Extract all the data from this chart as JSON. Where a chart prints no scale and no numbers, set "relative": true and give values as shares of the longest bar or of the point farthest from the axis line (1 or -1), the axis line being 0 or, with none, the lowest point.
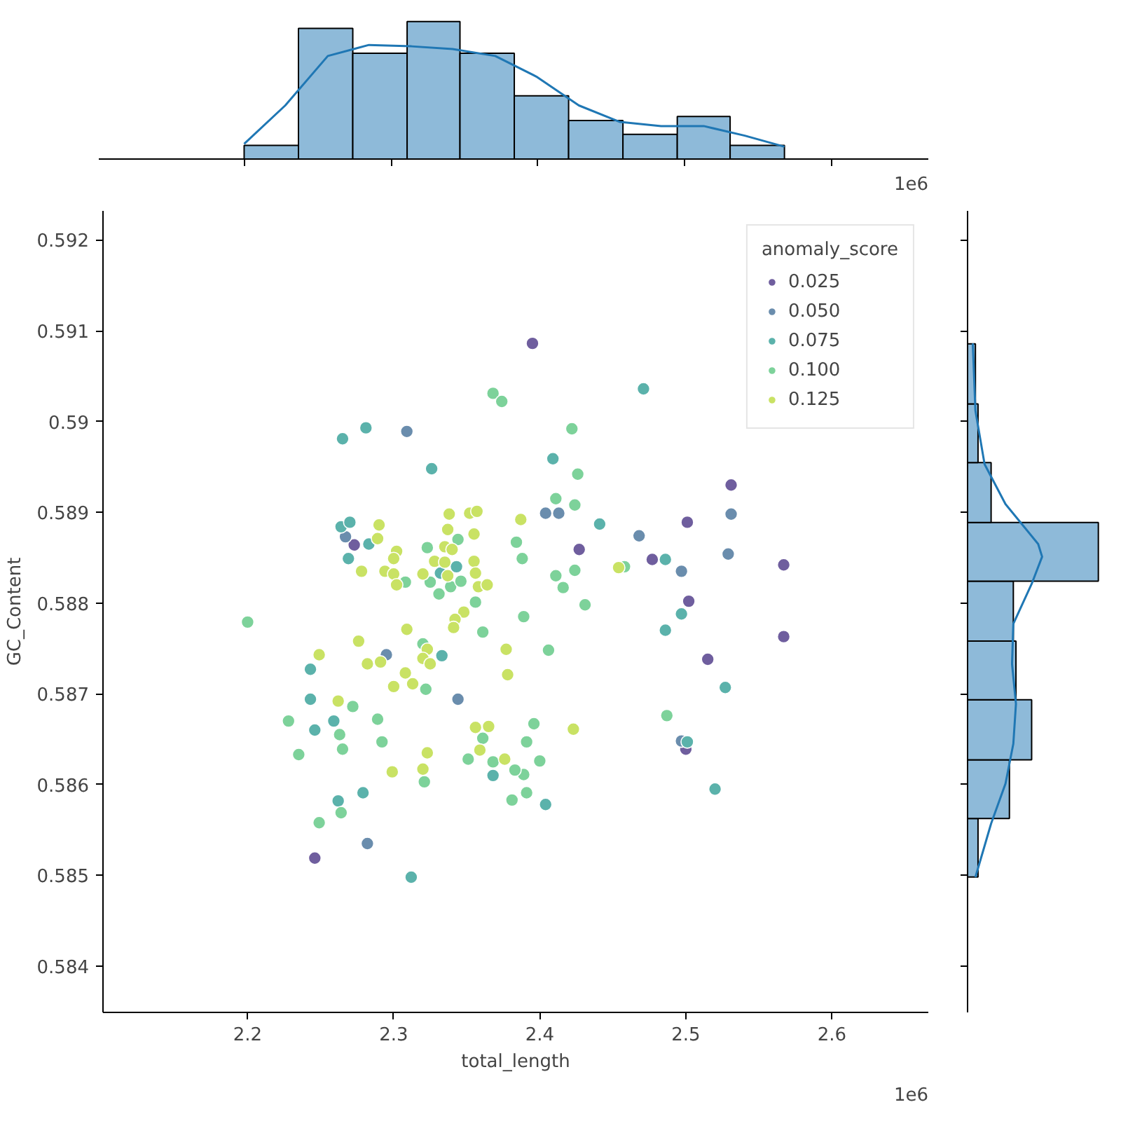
{
  "chart_data": [
    {
      "type": "histogram",
      "relative": true,
      "color": "#8ebad9",
      "bins": [
        2.2,
        2.237,
        2.274,
        2.311,
        2.347,
        2.384,
        2.421,
        2.458,
        2.495,
        2.531,
        2.568
      ],
      "values": [
        0.1,
        0.95,
        0.77,
        1.0,
        0.77,
        0.46,
        0.28,
        0.18,
        0.31,
        0.1
      ],
      "xlim": [
        2.101,
        2.666
      ],
      "xticks": [
        2.2,
        2.3,
        2.4,
        2.5,
        2.6
      ],
      "tick_labels": false,
      "annotations": [
        "1e6"
      ],
      "series": [
        {
          "type": "line",
          "color": "#1f77b4",
          "x": [
            2.2,
            2.228,
            2.257,
            2.285,
            2.314,
            2.342,
            2.371,
            2.399,
            2.428,
            2.456,
            2.484,
            2.513,
            2.541,
            2.568
          ],
          "values": [
            0.11,
            0.39,
            0.75,
            0.83,
            0.82,
            0.8,
            0.75,
            0.6,
            0.39,
            0.27,
            0.24,
            0.24,
            0.17,
            0.09
          ]
        }
      ]
    },
    {
      "type": "scatter",
      "xlabel": "total_length",
      "ylabel": "GC_Content",
      "xlim": [
        2.101,
        2.666
      ],
      "ylim": [
        0.58349,
        0.59232
      ],
      "xticks": [
        2.2,
        2.3,
        2.4,
        2.5,
        2.6
      ],
      "yticks": [
        0.584,
        0.585,
        0.586,
        0.587,
        0.588,
        0.589,
        0.59,
        0.591,
        0.592
      ],
      "legend": "top right",
      "legend_title": "anomaly_score",
      "marker": "circle",
      "grid": false,
      "annotations": [
        "1e6"
      ],
      "series": [
        {
          "type": "scatter",
          "name": "0.025",
          "color": "#6f5e9e",
          "x": [
            2.395,
            2.531,
            2.501,
            2.273,
            2.427,
            2.477,
            2.567,
            2.502,
            2.567,
            2.515,
            2.5,
            2.246
          ],
          "values": [
            0.59086,
            0.5893,
            0.58889,
            0.58864,
            0.58859,
            0.58848,
            0.58842,
            0.58802,
            0.58763,
            0.58738,
            0.58639,
            0.58519
          ]
        },
        {
          "type": "scatter",
          "name": "0.050",
          "color": "#6a8dad",
          "x": [
            2.309,
            2.267,
            2.404,
            2.413,
            2.531,
            2.529,
            2.468,
            2.497,
            2.497,
            2.295,
            2.344,
            2.282
          ],
          "values": [
            0.58989,
            0.58873,
            0.58899,
            0.58899,
            0.58898,
            0.58854,
            0.58874,
            0.58835,
            0.58648,
            0.58743,
            0.58694,
            0.58535
          ]
        },
        {
          "type": "scatter",
          "name": "0.075",
          "color": "#5bb2ab",
          "x": [
            2.265,
            2.281,
            2.326,
            2.471,
            2.409,
            2.441,
            2.486,
            2.264,
            2.27,
            2.283,
            2.269,
            2.343,
            2.332,
            2.243,
            2.243,
            2.246,
            2.259,
            2.262,
            2.279,
            2.333,
            2.312,
            2.497,
            2.486,
            2.527,
            2.501,
            2.52,
            2.404,
            2.368
          ],
          "values": [
            0.58981,
            0.58993,
            0.58948,
            0.59036,
            0.58959,
            0.58887,
            0.58848,
            0.58884,
            0.58889,
            0.58865,
            0.58849,
            0.5884,
            0.58833,
            0.58727,
            0.58694,
            0.5866,
            0.5867,
            0.58582,
            0.58591,
            0.58742,
            0.58498,
            0.58788,
            0.5877,
            0.58707,
            0.58647,
            0.58595,
            0.58578,
            0.5861
          ]
        },
        {
          "type": "scatter",
          "name": "0.100",
          "color": "#7dd29a",
          "x": [
            2.368,
            2.374,
            2.422,
            2.426,
            2.411,
            2.424,
            2.384,
            2.388,
            2.411,
            2.424,
            2.416,
            2.431,
            2.458,
            2.323,
            2.344,
            2.308,
            2.325,
            2.339,
            2.346,
            2.331,
            2.356,
            2.361,
            2.2,
            2.228,
            2.235,
            2.249,
            2.264,
            2.272,
            2.263,
            2.265,
            2.289,
            2.292,
            2.32,
            2.322,
            2.321,
            2.361,
            2.351,
            2.368,
            2.389,
            2.406,
            2.487,
            2.396,
            2.391,
            2.4,
            2.389,
            2.383,
            2.381,
            2.391
          ],
          "values": [
            0.59031,
            0.59022,
            0.58992,
            0.58942,
            0.58915,
            0.58908,
            0.58867,
            0.58849,
            0.5883,
            0.58836,
            0.58817,
            0.58798,
            0.5884,
            0.58861,
            0.5887,
            0.58823,
            0.58823,
            0.58818,
            0.58824,
            0.5881,
            0.58801,
            0.58768,
            0.58779,
            0.5867,
            0.58633,
            0.58558,
            0.58569,
            0.58686,
            0.58655,
            0.58639,
            0.58672,
            0.58647,
            0.58755,
            0.58705,
            0.58603,
            0.58651,
            0.58628,
            0.58625,
            0.58785,
            0.58748,
            0.58676,
            0.58667,
            0.58647,
            0.58626,
            0.58611,
            0.58616,
            0.58583,
            0.58591
          ]
        },
        {
          "type": "scatter",
          "name": "0.125",
          "color": "#c9e264",
          "x": [
            2.338,
            2.352,
            2.357,
            2.29,
            2.289,
            2.278,
            2.302,
            2.3,
            2.294,
            2.3,
            2.302,
            2.32,
            2.335,
            2.34,
            2.337,
            2.355,
            2.328,
            2.335,
            2.337,
            2.355,
            2.356,
            2.358,
            2.387,
            2.364,
            2.454,
            2.249,
            2.276,
            2.282,
            2.291,
            2.309,
            2.323,
            2.32,
            2.325,
            2.308,
            2.313,
            2.3,
            2.262,
            2.348,
            2.342,
            2.341,
            2.299,
            2.32,
            2.323,
            2.356,
            2.365,
            2.359,
            2.376,
            2.378,
            2.377,
            2.423
          ],
          "values": [
            0.58898,
            0.58899,
            0.58901,
            0.58886,
            0.58871,
            0.58835,
            0.58857,
            0.58849,
            0.58835,
            0.58832,
            0.5882,
            0.58832,
            0.58862,
            0.58859,
            0.58881,
            0.58876,
            0.58846,
            0.58845,
            0.5883,
            0.58846,
            0.58833,
            0.58818,
            0.58892,
            0.5882,
            0.58839,
            0.58743,
            0.58758,
            0.58733,
            0.58735,
            0.58771,
            0.58749,
            0.58739,
            0.58733,
            0.58723,
            0.58711,
            0.58708,
            0.58692,
            0.5879,
            0.58782,
            0.58773,
            0.58614,
            0.58617,
            0.58635,
            0.58663,
            0.58664,
            0.58638,
            0.58628,
            0.58721,
            0.58749,
            0.58661
          ]
        }
      ]
    },
    {
      "type": "histogram",
      "orientation": "horizontal",
      "relative": true,
      "color": "#8ebad9",
      "bins": [
        0.584981,
        0.585627,
        0.586273,
        0.586934,
        0.58758,
        0.588241,
        0.588887,
        0.589548,
        0.590194,
        0.590855
      ],
      "values": [
        0.08,
        0.32,
        0.49,
        0.37,
        0.35,
        1.0,
        0.18,
        0.08,
        0.06
      ],
      "ylim": [
        0.58349,
        0.59232
      ],
      "yticks": [
        0.584,
        0.585,
        0.586,
        0.587,
        0.588,
        0.589,
        0.59,
        0.591,
        0.592
      ],
      "tick_labels": false,
      "series": [
        {
          "type": "line",
          "color": "#1f77b4",
          "x": [
            0.59086,
            0.59012,
            0.58953,
            0.58909,
            0.58865,
            0.58851,
            0.58821,
            0.58777,
            0.58733,
            0.58689,
            0.58645,
            0.58601,
            0.58557,
            0.58498
          ],
          "values": [
            0.04,
            0.06,
            0.13,
            0.29,
            0.54,
            0.57,
            0.49,
            0.35,
            0.34,
            0.37,
            0.35,
            0.29,
            0.18,
            0.06
          ]
        }
      ]
    }
  ]
}
